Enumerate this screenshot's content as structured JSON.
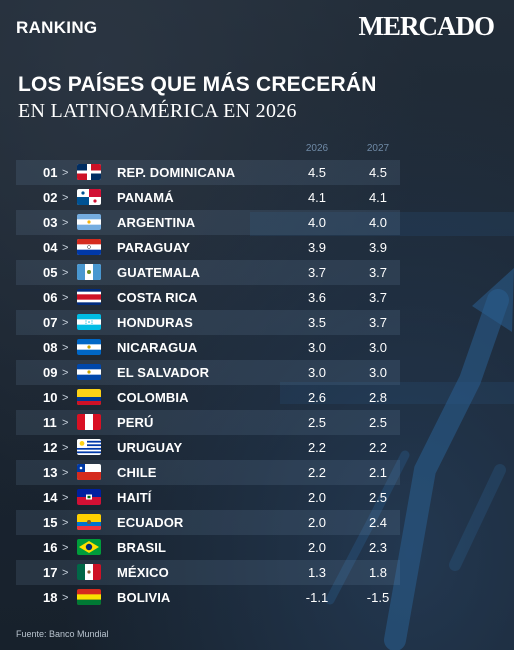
{
  "header": {
    "section_label": "RANKING",
    "brand": "MERCADO",
    "title_line1": "LOS PAÍSES QUE MÁS CRECERÁN",
    "title_line2": "EN LATINOAMÉRICA EN 2026"
  },
  "colors": {
    "background": "#1b2633",
    "row_shade": "#2f3d4d",
    "column_header": "#6f8aa6",
    "arrow": "#2a5f8f"
  },
  "footer": {
    "source": "Fuente: Banco Mundial"
  },
  "chart_data": {
    "type": "table",
    "columns": [
      "2026",
      "2027"
    ],
    "rows": [
      {
        "rank": "01",
        "country": "REP. DOMINICANA",
        "flag": "dominican-republic-flag",
        "v2026": "4.5",
        "v2027": "4.5"
      },
      {
        "rank": "02",
        "country": "PANAMÁ",
        "flag": "panama-flag",
        "v2026": "4.1",
        "v2027": "4.1"
      },
      {
        "rank": "03",
        "country": "ARGENTINA",
        "flag": "argentina-flag",
        "v2026": "4.0",
        "v2027": "4.0"
      },
      {
        "rank": "04",
        "country": "PARAGUAY",
        "flag": "paraguay-flag",
        "v2026": "3.9",
        "v2027": "3.9"
      },
      {
        "rank": "05",
        "country": "GUATEMALA",
        "flag": "guatemala-flag",
        "v2026": "3.7",
        "v2027": "3.7"
      },
      {
        "rank": "06",
        "country": "COSTA RICA",
        "flag": "costa-rica-flag",
        "v2026": "3.6",
        "v2027": "3.7"
      },
      {
        "rank": "07",
        "country": "HONDURAS",
        "flag": "honduras-flag",
        "v2026": "3.5",
        "v2027": "3.7"
      },
      {
        "rank": "08",
        "country": "NICARAGUA",
        "flag": "nicaragua-flag",
        "v2026": "3.0",
        "v2027": "3.0"
      },
      {
        "rank": "09",
        "country": "EL SALVADOR",
        "flag": "el-salvador-flag",
        "v2026": "3.0",
        "v2027": "3.0"
      },
      {
        "rank": "10",
        "country": "COLOMBIA",
        "flag": "colombia-flag",
        "v2026": "2.6",
        "v2027": "2.8"
      },
      {
        "rank": "11",
        "country": "PERÚ",
        "flag": "peru-flag",
        "v2026": "2.5",
        "v2027": "2.5"
      },
      {
        "rank": "12",
        "country": "URUGUAY",
        "flag": "uruguay-flag",
        "v2026": "2.2",
        "v2027": "2.2"
      },
      {
        "rank": "13",
        "country": "CHILE",
        "flag": "chile-flag",
        "v2026": "2.2",
        "v2027": "2.1"
      },
      {
        "rank": "14",
        "country": "HAITÍ",
        "flag": "haiti-flag",
        "v2026": "2.0",
        "v2027": "2.5"
      },
      {
        "rank": "15",
        "country": "ECUADOR",
        "flag": "ecuador-flag",
        "v2026": "2.0",
        "v2027": "2.4"
      },
      {
        "rank": "16",
        "country": "BRASIL",
        "flag": "brazil-flag",
        "v2026": "2.0",
        "v2027": "2.3"
      },
      {
        "rank": "17",
        "country": "MÉXICO",
        "flag": "mexico-flag",
        "v2026": "1.3",
        "v2027": "1.8"
      },
      {
        "rank": "18",
        "country": "BOLIVIA",
        "flag": "bolivia-flag",
        "v2026": "-1.1",
        "v2027": "-1.5"
      }
    ]
  }
}
